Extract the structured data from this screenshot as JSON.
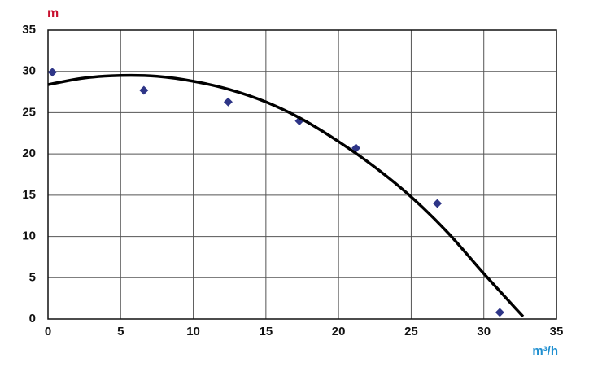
{
  "chart_data": {
    "type": "scatter",
    "ylabel": "m",
    "ylabel_color": "#c8102e",
    "xlabel": "m³/h",
    "xlabel_color": "#1f8fd0",
    "xlim": [
      0,
      35
    ],
    "xticks": [
      0,
      5,
      10,
      15,
      20,
      25,
      30,
      35
    ],
    "ylim": [
      0,
      35
    ],
    "yticks": [
      0,
      5,
      10,
      15,
      20,
      25,
      30,
      35
    ],
    "grid": true,
    "series": [
      {
        "mode": "markers",
        "color": "#2e3587",
        "x": [
          0.3,
          6.6,
          12.4,
          17.3,
          21.2,
          26.8,
          31.1
        ],
        "values": [
          29.9,
          27.7,
          26.3,
          24.0,
          20.7,
          14.0,
          0.8
        ]
      },
      {
        "mode": "line",
        "color": "#000000",
        "x": [
          0,
          2.5,
          5,
          7.5,
          10,
          12.5,
          15,
          17.5,
          20,
          22.5,
          25,
          27.5,
          30,
          32.7
        ],
        "values": [
          28.4,
          29.2,
          29.5,
          29.4,
          28.8,
          27.8,
          26.3,
          24.2,
          21.5,
          18.4,
          14.8,
          10.5,
          5.5,
          0.3
        ]
      }
    ]
  }
}
